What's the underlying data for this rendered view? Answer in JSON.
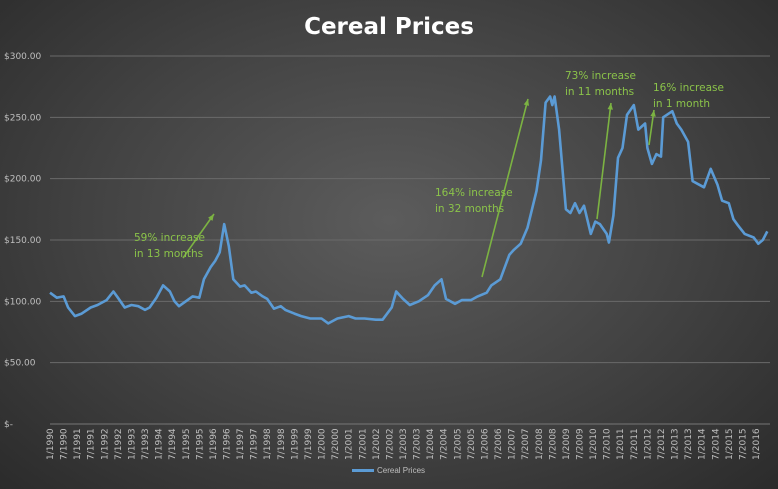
{
  "chart_data": {
    "type": "line",
    "title": "Cereal Prices",
    "ylim": [
      0,
      300
    ],
    "yticks": [
      "$-",
      "$50.00",
      "$100.00",
      "$150.00",
      "$200.00",
      "$250.00",
      "$300.00"
    ],
    "xticks": [
      "1/1990",
      "7/1990",
      "1/1991",
      "7/1991",
      "1/1992",
      "7/1992",
      "1/1993",
      "7/1993",
      "1/1994",
      "7/1994",
      "1/1995",
      "7/1995",
      "1/1996",
      "7/1996",
      "1/1997",
      "7/1997",
      "1/1998",
      "7/1998",
      "1/1999",
      "7/1999",
      "1/2000",
      "7/2000",
      "1/2001",
      "7/2001",
      "1/2002",
      "7/2002",
      "1/2003",
      "7/2003",
      "1/2004",
      "7/2004",
      "1/2005",
      "7/2005",
      "1/2006",
      "7/2006",
      "1/2007",
      "7/2007",
      "1/2008",
      "7/2008",
      "1/2009",
      "7/2009",
      "1/2010",
      "7/2010",
      "1/2011",
      "7/2011",
      "1/2012",
      "7/2012",
      "1/2013",
      "7/2013",
      "1/2014",
      "7/2014",
      "1/2015",
      "7/2015",
      "1/2016"
    ],
    "grid": true,
    "legend": "bottom",
    "series": [
      {
        "name": "Cereal Prices",
        "color": "#5b9bd5",
        "x": [
          "1990-01",
          "1990-04",
          "1990-07",
          "1990-09",
          "1990-12",
          "1991-03",
          "1991-07",
          "1991-10",
          "1992-02",
          "1992-05",
          "1992-07",
          "1992-10",
          "1993-01",
          "1993-04",
          "1993-07",
          "1993-09",
          "1993-12",
          "1994-03",
          "1994-06",
          "1994-08",
          "1994-10",
          "1995-01",
          "1995-04",
          "1995-07",
          "1995-09",
          "1995-12",
          "1996-02",
          "1996-04",
          "1996-06",
          "1996-08",
          "1996-10",
          "1997-01",
          "1997-03",
          "1997-06",
          "1997-08",
          "1997-11",
          "1998-01",
          "1998-04",
          "1998-07",
          "1998-09",
          "1999-01",
          "1999-04",
          "1999-08",
          "2000-01",
          "2000-04",
          "2000-08",
          "2001-01",
          "2001-04",
          "2001-08",
          "2002-01",
          "2002-04",
          "2002-08",
          "2002-10",
          "2003-01",
          "2003-04",
          "2003-08",
          "2003-12",
          "2004-03",
          "2004-06",
          "2004-08",
          "2004-12",
          "2005-03",
          "2005-07",
          "2005-10",
          "2006-02",
          "2006-04",
          "2006-08",
          "2006-12",
          "2007-02",
          "2007-05",
          "2007-08",
          "2007-12",
          "2008-02",
          "2008-04",
          "2008-06",
          "2008-07",
          "2008-08",
          "2008-10",
          "2009-01",
          "2009-03",
          "2009-05",
          "2009-07",
          "2009-09",
          "2009-12",
          "2010-02",
          "2010-04",
          "2010-07",
          "2010-08",
          "2010-10",
          "2010-12",
          "2011-02",
          "2011-04",
          "2011-07",
          "2011-09",
          "2011-12",
          "2012-01",
          "2012-03",
          "2012-05",
          "2012-07",
          "2012-08",
          "2012-12",
          "2013-02",
          "2013-04",
          "2013-07",
          "2013-09",
          "2013-12",
          "2014-02",
          "2014-05",
          "2014-08",
          "2014-10",
          "2015-01",
          "2015-03",
          "2015-05",
          "2015-08",
          "2015-12",
          "2016-02",
          "2016-04",
          "2016-06"
        ],
        "values": [
          107,
          103,
          104,
          95,
          88,
          90,
          95,
          97,
          101,
          108,
          103,
          95,
          97,
          96,
          93,
          95,
          103,
          113,
          108,
          100,
          96,
          100,
          104,
          103,
          118,
          128,
          133,
          140,
          163,
          145,
          118,
          112,
          113,
          107,
          108,
          104,
          102,
          94,
          96,
          93,
          90,
          88,
          86,
          86,
          82,
          86,
          88,
          86,
          86,
          85,
          85,
          95,
          108,
          102,
          97,
          100,
          105,
          113,
          118,
          102,
          98,
          101,
          101,
          104,
          107,
          113,
          118,
          138,
          142,
          147,
          160,
          190,
          215,
          262,
          267,
          260,
          267,
          240,
          175,
          172,
          180,
          172,
          178,
          155,
          165,
          163,
          155,
          148,
          170,
          217,
          225,
          252,
          260,
          240,
          245,
          225,
          212,
          220,
          218,
          250,
          255,
          245,
          240,
          230,
          198,
          195,
          193,
          208,
          195,
          182,
          180,
          167,
          162,
          155,
          152,
          147,
          150,
          157
        ]
      }
    ],
    "annotations": [
      {
        "lines": [
          "59% increase",
          "in 13 months"
        ]
      },
      {
        "lines": [
          "164% increase",
          "in 32 months"
        ]
      },
      {
        "lines": [
          "73% increase",
          "in 11 months"
        ]
      },
      {
        "lines": [
          "16% increase",
          "in 1 month"
        ]
      }
    ]
  }
}
